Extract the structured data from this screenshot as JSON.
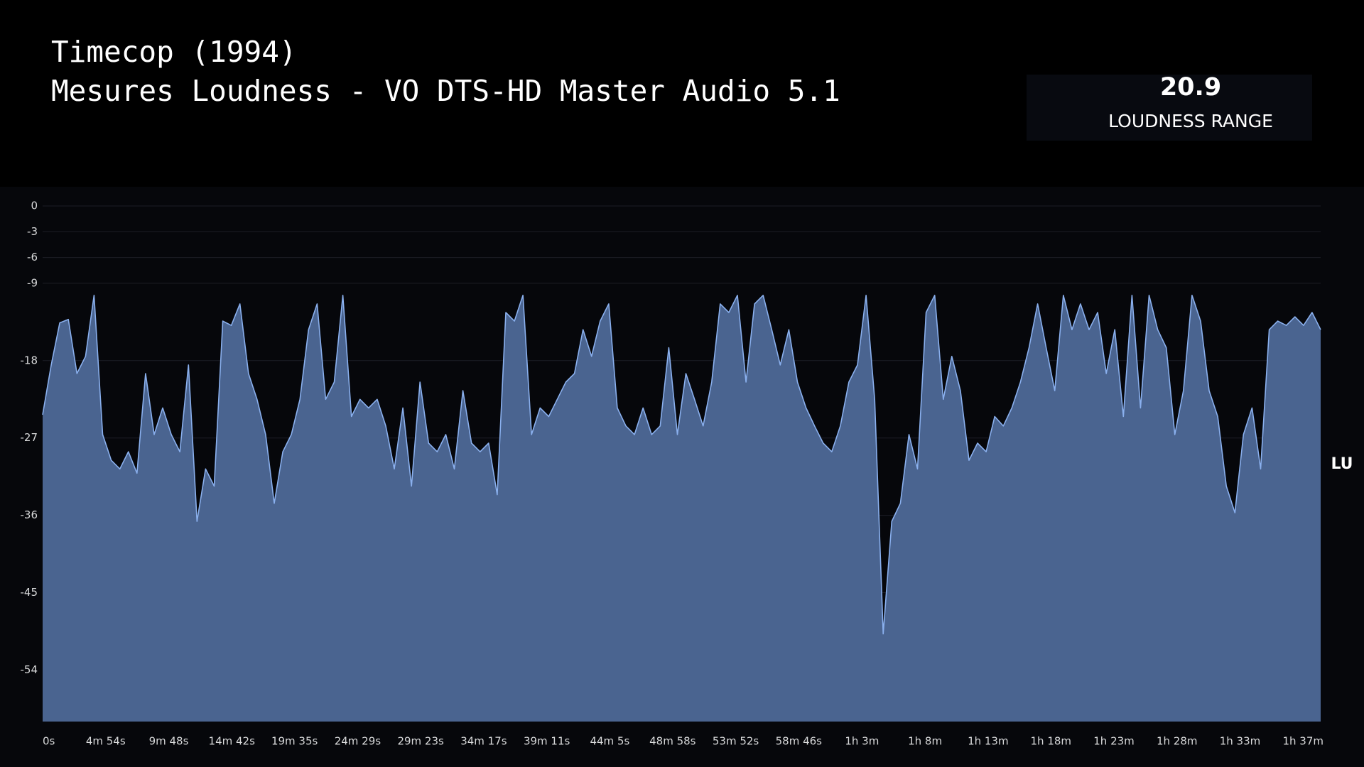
{
  "stat": {
    "value": 20.9,
    "label": "LOUDNESS RANGE"
  },
  "chart_data": {
    "type": "area",
    "title": "Timecop (1994)",
    "subtitle": "Mesures Loudness - VO DTS-HD Master Audio 5.1",
    "y_label": "LU",
    "line_color": "#8ab0ee",
    "fill_color": "#4a6490",
    "grid": true,
    "xlim": [
      0,
      5960
    ],
    "ylim": [
      -60,
      0
    ],
    "yticks": [
      0,
      -3,
      -6,
      -9,
      -18,
      -27,
      -36,
      -45,
      -54
    ],
    "xticks": [
      {
        "value": 0,
        "label": "0s"
      },
      {
        "value": 294,
        "label": "4m 54s"
      },
      {
        "value": 588,
        "label": "9m 48s"
      },
      {
        "value": 882,
        "label": "14m 42s"
      },
      {
        "value": 1175,
        "label": "19m 35s"
      },
      {
        "value": 1469,
        "label": "24m 29s"
      },
      {
        "value": 1763,
        "label": "29m 23s"
      },
      {
        "value": 2057,
        "label": "34m 17s"
      },
      {
        "value": 2351,
        "label": "39m 11s"
      },
      {
        "value": 2645,
        "label": "44m 5s"
      },
      {
        "value": 2938,
        "label": "48m 58s"
      },
      {
        "value": 3232,
        "label": "53m 52s"
      },
      {
        "value": 3526,
        "label": "58m 46s"
      },
      {
        "value": 3821,
        "label": "1h 3m"
      },
      {
        "value": 4115,
        "label": "1h 8m"
      },
      {
        "value": 4409,
        "label": "1h 13m"
      },
      {
        "value": 4702,
        "label": "1h 18m"
      },
      {
        "value": 4996,
        "label": "1h 23m"
      },
      {
        "value": 5290,
        "label": "1h 28m"
      },
      {
        "value": 5584,
        "label": "1h 33m"
      },
      {
        "value": 5878,
        "label": "1h 37m"
      }
    ],
    "x": [
      0,
      40,
      80,
      120,
      160,
      200,
      240,
      280,
      320,
      360,
      400,
      440,
      480,
      520,
      560,
      600,
      640,
      680,
      720,
      760,
      800,
      840,
      880,
      920,
      960,
      1000,
      1040,
      1080,
      1120,
      1160,
      1200,
      1240,
      1280,
      1320,
      1360,
      1400,
      1440,
      1480,
      1520,
      1560,
      1600,
      1640,
      1680,
      1720,
      1760,
      1800,
      1840,
      1880,
      1920,
      1960,
      2000,
      2040,
      2080,
      2120,
      2160,
      2200,
      2240,
      2280,
      2320,
      2360,
      2400,
      2440,
      2480,
      2520,
      2560,
      2600,
      2640,
      2680,
      2720,
      2760,
      2800,
      2840,
      2880,
      2920,
      2960,
      3000,
      3040,
      3080,
      3120,
      3160,
      3200,
      3240,
      3280,
      3320,
      3360,
      3400,
      3440,
      3480,
      3520,
      3560,
      3600,
      3640,
      3680,
      3720,
      3760,
      3800,
      3840,
      3880,
      3920,
      3960,
      4000,
      4040,
      4080,
      4120,
      4160,
      4200,
      4240,
      4280,
      4320,
      4360,
      4400,
      4440,
      4480,
      4520,
      4560,
      4600,
      4640,
      4680,
      4720,
      4760,
      4800,
      4840,
      4880,
      4920,
      4960,
      5000,
      5040,
      5080,
      5120,
      5160,
      5200,
      5240,
      5280,
      5320,
      5360,
      5400,
      5440,
      5480,
      5520,
      5560,
      5600,
      5640,
      5680,
      5720,
      5760,
      5800,
      5840,
      5880,
      5920,
      5960
    ],
    "series": [
      {
        "values": [
          -24.3,
          -18.5,
          -13.6,
          -13.2,
          -19.5,
          -17.5,
          -10.4,
          -26.6,
          -29.6,
          -30.6,
          -28.6,
          -31.1,
          -19.5,
          -26.6,
          -23.5,
          -26.6,
          -28.6,
          -18.5,
          -36.7,
          -30.6,
          -32.6,
          -13.4,
          -13.9,
          -11.4,
          -19.5,
          -22.5,
          -26.6,
          -34.6,
          -28.6,
          -26.6,
          -22.5,
          -14.4,
          -11.4,
          -22.5,
          -20.5,
          -10.4,
          -24.5,
          -22.5,
          -23.5,
          -22.5,
          -25.6,
          -30.6,
          -23.5,
          -32.6,
          -20.5,
          -27.6,
          -28.6,
          -26.6,
          -30.6,
          -21.5,
          -27.6,
          -28.6,
          -27.6,
          -33.6,
          -12.4,
          -13.4,
          -10.4,
          -26.6,
          -23.5,
          -24.5,
          -22.5,
          -20.5,
          -19.5,
          -14.4,
          -17.5,
          -13.4,
          -11.4,
          -23.5,
          -25.6,
          -26.6,
          -23.5,
          -26.6,
          -25.6,
          -16.5,
          -26.6,
          -19.5,
          -22.5,
          -25.6,
          -20.5,
          -11.4,
          -12.4,
          -10.4,
          -20.5,
          -11.4,
          -10.4,
          -14.4,
          -18.5,
          -14.4,
          -20.5,
          -23.5,
          -25.6,
          -27.6,
          -28.6,
          -25.6,
          -20.5,
          -18.5,
          -10.4,
          -22.5,
          -49.8,
          -36.7,
          -34.6,
          -26.6,
          -30.6,
          -12.4,
          -10.4,
          -22.5,
          -17.5,
          -21.5,
          -29.6,
          -27.6,
          -28.6,
          -24.5,
          -25.6,
          -23.5,
          -20.5,
          -16.5,
          -11.4,
          -16.5,
          -21.5,
          -10.4,
          -14.4,
          -11.4,
          -14.4,
          -12.4,
          -19.5,
          -14.4,
          -24.5,
          -10.4,
          -23.5,
          -10.4,
          -14.4,
          -16.5,
          -26.6,
          -21.5,
          -10.4,
          -13.4,
          -21.5,
          -24.5,
          -32.6,
          -35.7,
          -26.6,
          -23.5,
          -30.6,
          -14.4,
          -13.4,
          -13.9,
          -12.9,
          -13.9,
          -12.4,
          -14.4
        ]
      }
    ]
  }
}
